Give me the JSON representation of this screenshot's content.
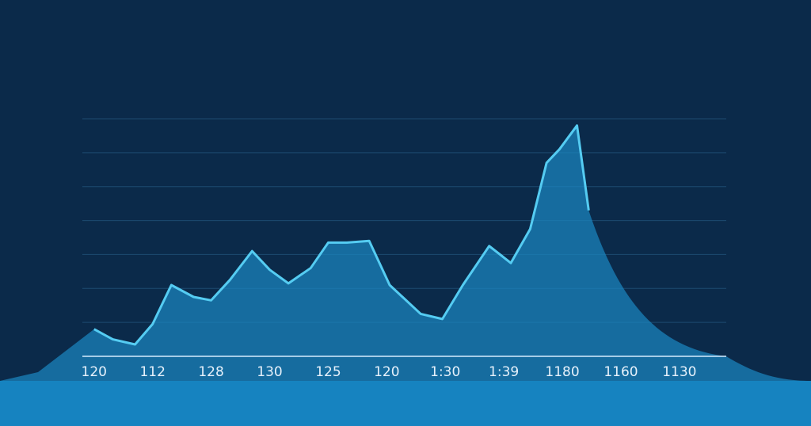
{
  "colors": {
    "background": "#0b2a4a",
    "gridline": "#1d4a70",
    "baseline": "#d6ecff",
    "line": "#55ccf2",
    "area_fill": "#1a86c0",
    "bottom_band": "#0b79bd"
  },
  "chart_data": {
    "type": "area",
    "title": "",
    "xlabel": "",
    "ylabel": "",
    "grid": true,
    "legend": "none",
    "x_tick_labels": [
      "120",
      "112",
      "128",
      "130",
      "125",
      "120",
      "1:30",
      "1:39",
      "1180",
      "1160",
      "1130"
    ],
    "ylim": [
      0,
      70
    ],
    "y_gridlines": [
      10,
      20,
      30,
      40,
      50,
      60,
      70
    ],
    "series": [
      {
        "x": [
          0,
          0.32,
          0.7,
          1.0,
          1.32,
          1.7,
          2.0,
          2.32,
          2.7,
          3.0,
          3.32,
          3.7,
          4.0,
          4.32,
          4.7,
          5.05,
          5.58,
          5.95,
          6.3,
          6.75,
          7.12,
          7.45,
          7.73,
          7.95,
          8.25,
          8.45
        ],
        "y": [
          8,
          5,
          3.5,
          9.5,
          21,
          17.5,
          16.5,
          22.5,
          31,
          25.5,
          21.5,
          26,
          33.5,
          33.5,
          34,
          21,
          12.5,
          11,
          21,
          32.5,
          27.5,
          37.5,
          57,
          61,
          68,
          43
        ]
      }
    ]
  }
}
